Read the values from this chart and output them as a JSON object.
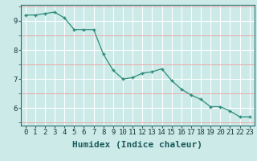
{
  "x": [
    0,
    1,
    2,
    3,
    4,
    5,
    6,
    7,
    8,
    9,
    10,
    11,
    12,
    13,
    14,
    15,
    16,
    17,
    18,
    19,
    20,
    21,
    22,
    23
  ],
  "y": [
    9.2,
    9.2,
    9.25,
    9.3,
    9.1,
    8.7,
    8.7,
    8.7,
    7.85,
    7.3,
    7.0,
    7.05,
    7.2,
    7.25,
    7.35,
    6.95,
    6.65,
    6.45,
    6.3,
    6.05,
    6.05,
    5.9,
    5.7,
    5.7
  ],
  "line_color": "#2d8b7a",
  "marker": "P",
  "marker_size": 3,
  "bg_color": "#cceae8",
  "grid_major_color": "#ffffff",
  "grid_minor_color": "#e8aaaa",
  "xlabel": "Humidex (Indice chaleur)",
  "xlim": [
    -0.5,
    23.5
  ],
  "ylim": [
    5.4,
    9.55
  ],
  "yticks": [
    6,
    7,
    8,
    9
  ],
  "yticks_minor": [
    5.5,
    6.5,
    7.5,
    8.5,
    9.5
  ],
  "xticks": [
    0,
    1,
    2,
    3,
    4,
    5,
    6,
    7,
    8,
    9,
    10,
    11,
    12,
    13,
    14,
    15,
    16,
    17,
    18,
    19,
    20,
    21,
    22,
    23
  ],
  "tick_fontsize": 6.5,
  "label_fontsize": 8
}
